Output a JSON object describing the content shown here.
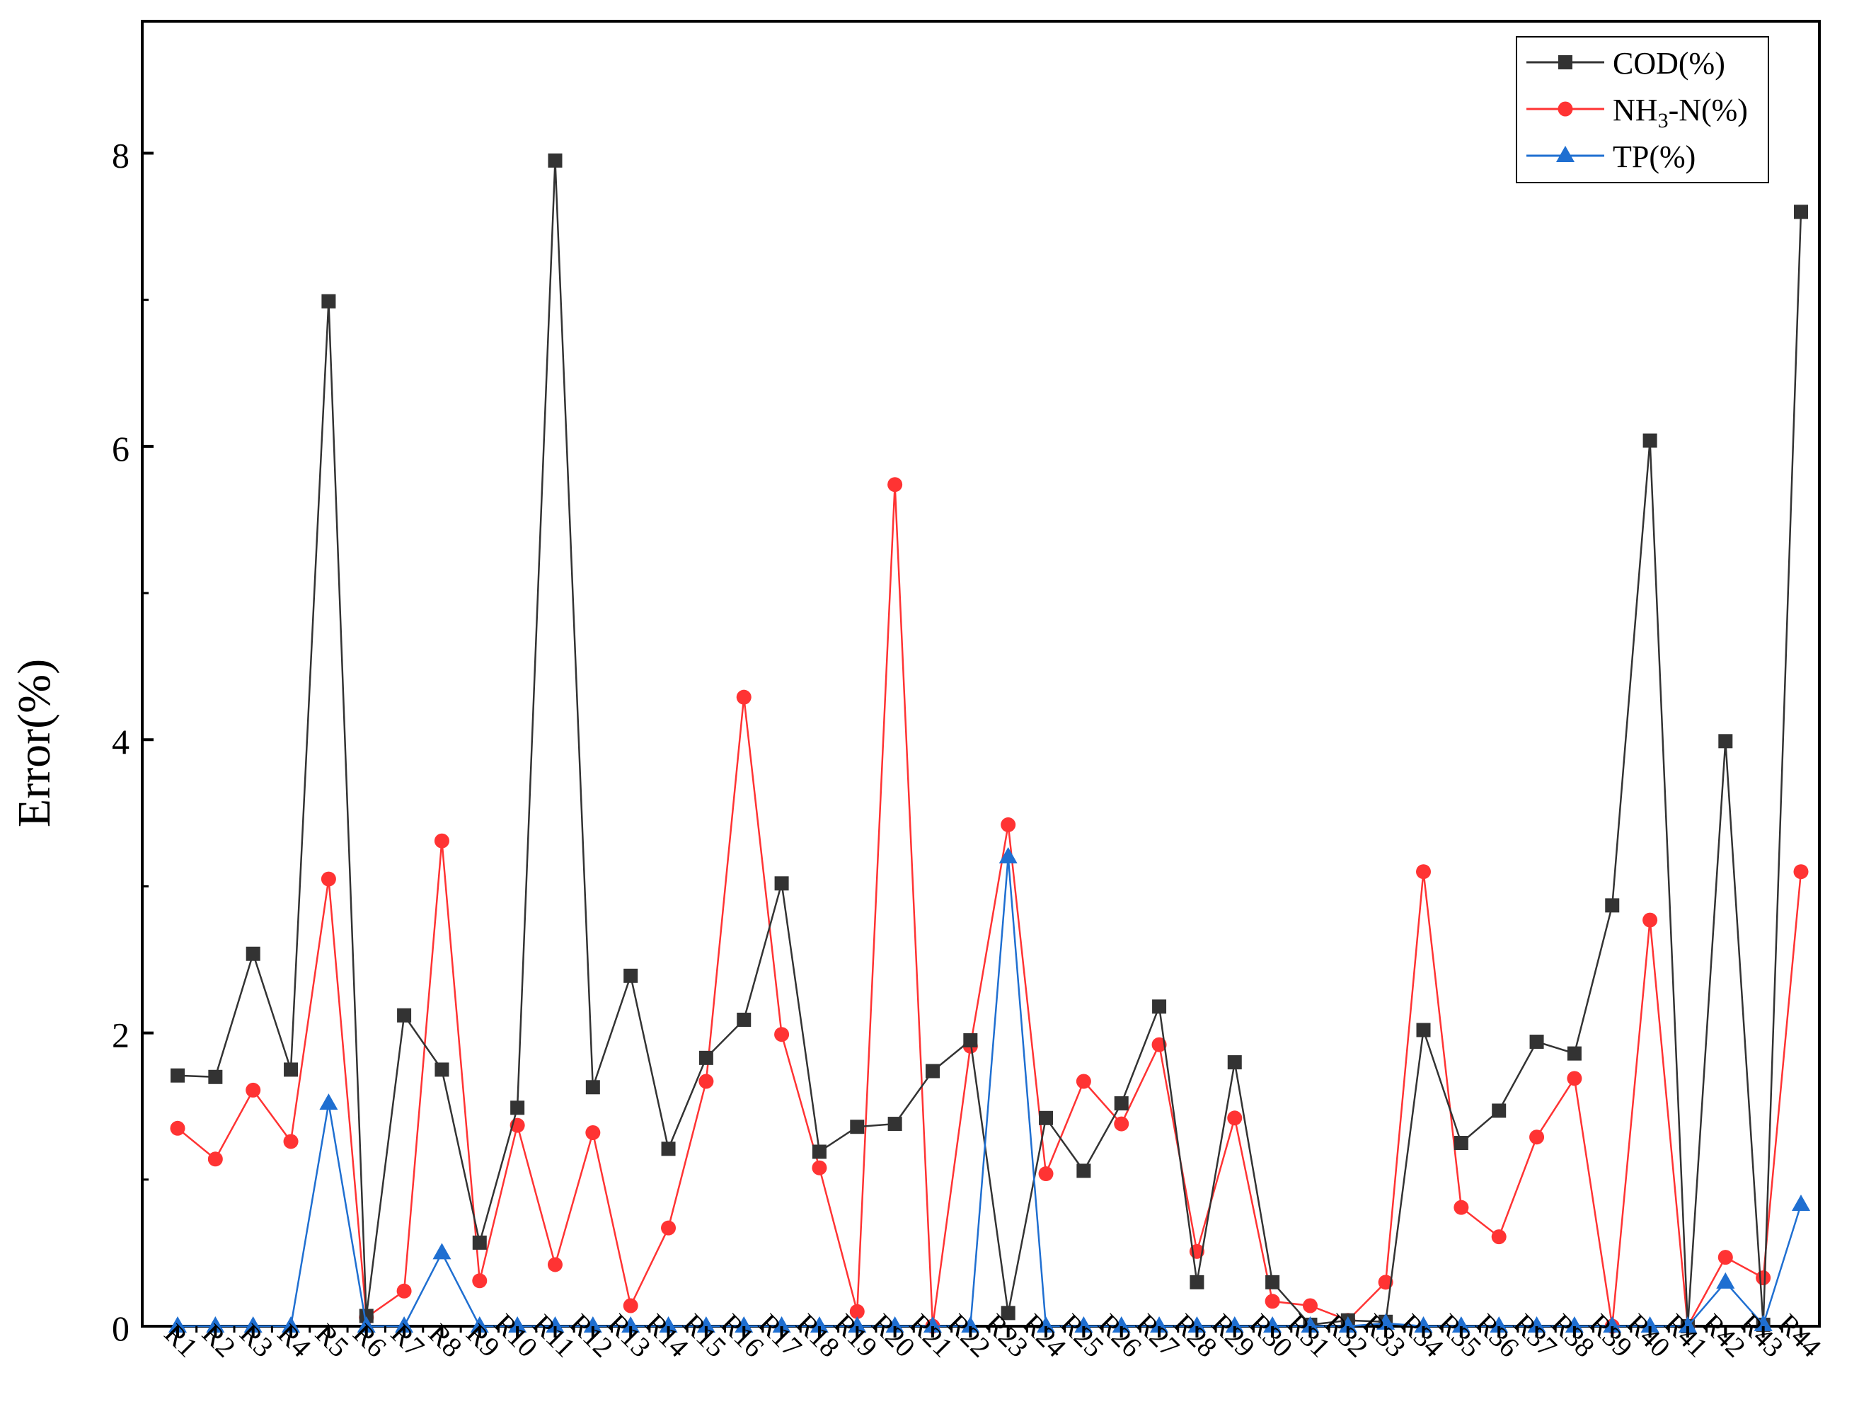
{
  "chart_data": {
    "type": "line",
    "title": "",
    "xlabel": "",
    "ylabel": "Error(%)",
    "ylim": [
      0,
      8.9
    ],
    "yticks": [
      0,
      2,
      4,
      6,
      8
    ],
    "grid": false,
    "legend_position": "top-right",
    "categories": [
      "R1",
      "R2",
      "R3",
      "R4",
      "R5",
      "R6",
      "R7",
      "R8",
      "R9",
      "R10",
      "R11",
      "R12",
      "R13",
      "R14",
      "R15",
      "R16",
      "R17",
      "R18",
      "R19",
      "R20",
      "R21",
      "R22",
      "R23",
      "R24",
      "R25",
      "R26",
      "R27",
      "R28",
      "R29",
      "R30",
      "R31",
      "R32",
      "R33",
      "R34",
      "R35",
      "R36",
      "R37",
      "R38",
      "R39",
      "R40",
      "R41",
      "R42",
      "R43",
      "R44"
    ],
    "series": [
      {
        "name": "COD(%)",
        "color": "#333333",
        "marker": "square",
        "values": [
          1.71,
          1.7,
          2.54,
          1.75,
          6.99,
          0.07,
          2.12,
          1.75,
          0.57,
          1.49,
          7.95,
          1.63,
          2.39,
          1.21,
          1.83,
          2.09,
          3.02,
          1.19,
          1.36,
          1.38,
          1.74,
          1.95,
          0.09,
          1.42,
          1.06,
          1.52,
          2.18,
          0.3,
          1.8,
          0.3,
          0.01,
          0.04,
          0.03,
          2.02,
          1.25,
          1.47,
          1.94,
          1.86,
          2.87,
          6.04,
          0.0,
          3.99,
          0.01,
          7.6
        ]
      },
      {
        "name": "NH3-N(%)",
        "name_parts": {
          "pre": "NH",
          "sub": "3",
          "post": "-N(%)"
        },
        "color": "#ff3333",
        "marker": "circle",
        "values": [
          1.35,
          1.14,
          1.61,
          1.26,
          3.05,
          0.06,
          0.24,
          3.31,
          0.31,
          1.37,
          0.42,
          1.32,
          0.14,
          0.67,
          1.67,
          4.29,
          1.99,
          1.08,
          0.1,
          5.74,
          0.0,
          1.91,
          3.42,
          1.04,
          1.67,
          1.38,
          1.92,
          0.51,
          1.42,
          0.17,
          0.14,
          0.04,
          0.3,
          3.1,
          0.81,
          0.61,
          1.29,
          1.69,
          0.0,
          2.77,
          0.0,
          0.47,
          0.33,
          3.1
        ]
      },
      {
        "name": "TP(%)",
        "color": "#1f6fd1",
        "marker": "triangle",
        "values": [
          0,
          0,
          0,
          0,
          1.52,
          0,
          0,
          0.5,
          0,
          0,
          0,
          0,
          0,
          0,
          0,
          0,
          0,
          0,
          0,
          0,
          0,
          0,
          3.2,
          0,
          0,
          0,
          0,
          0,
          0,
          0,
          0,
          0,
          0.02,
          0,
          0,
          0,
          0,
          0,
          0,
          0,
          0,
          0.3,
          0.01,
          0.83
        ]
      }
    ]
  }
}
